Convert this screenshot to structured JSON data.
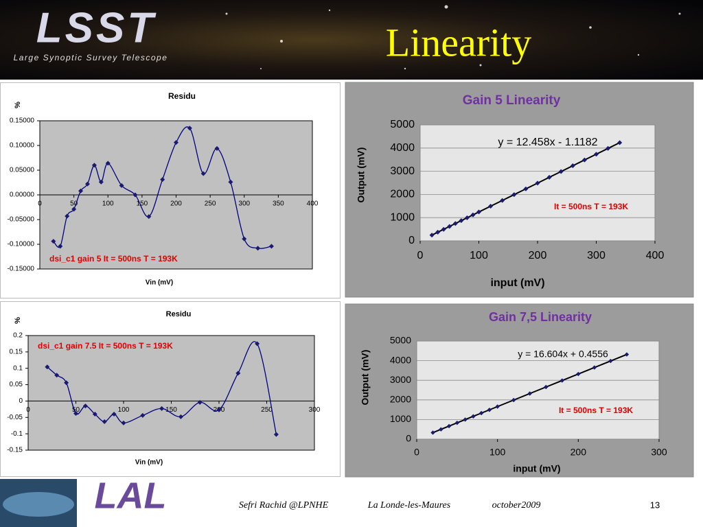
{
  "header": {
    "title": "Linearity",
    "logo": "LSST",
    "logo_caption": "Large Synoptic Survey Telescope"
  },
  "footer": {
    "author": "Sefri Rachid @LPNHE",
    "place": "La Londe-les-Maures",
    "date": "october2009",
    "page": "13",
    "logo": "LAL"
  },
  "chart_data": [
    {
      "type": "line",
      "title": "Residu",
      "ylabel": "%",
      "xlabel": "Vin (mV)",
      "annotation": "dsi_c1 gain 5  It = 500ns   T = 193K",
      "x": [
        20,
        30,
        40,
        50,
        60,
        70,
        80,
        90,
        100,
        120,
        140,
        160,
        180,
        200,
        220,
        240,
        260,
        280,
        300,
        320,
        340
      ],
      "values": [
        -0.094,
        -0.104,
        -0.043,
        -0.029,
        0.008,
        0.022,
        0.06,
        0.026,
        0.064,
        0.019,
        0.0,
        -0.044,
        0.031,
        0.106,
        0.135,
        0.043,
        0.094,
        0.026,
        -0.089,
        -0.108,
        -0.104
      ],
      "color": "#000080",
      "smooth": true,
      "grid": false,
      "xlim": [
        0,
        400
      ],
      "xticks": [
        0,
        50,
        100,
        150,
        200,
        250,
        300,
        350,
        400
      ],
      "ylim": [
        -0.15,
        0.15
      ],
      "yticks": [
        {
          "value": 0.15,
          "label": "0.15000"
        },
        {
          "value": 0.1,
          "label": "0.10000"
        },
        {
          "value": 0.05,
          "label": "0.05000"
        },
        {
          "value": 0,
          "label": "0.00000"
        },
        {
          "value": -0.05,
          "label": "-0.05000"
        },
        {
          "value": -0.1,
          "label": "-0.10000"
        },
        {
          "value": -0.15,
          "label": "-0.15000"
        }
      ]
    },
    {
      "type": "line",
      "title": "Gain 5 Linearity",
      "ylabel": "Output (mV)",
      "xlabel": "input (mV)",
      "equation": "y = 12.458x - 1.1182",
      "annotation": "It = 500ns   T = 193K",
      "x": [
        20,
        30,
        40,
        50,
        60,
        70,
        80,
        90,
        100,
        120,
        140,
        160,
        180,
        200,
        220,
        240,
        260,
        280,
        300,
        320,
        340
      ],
      "values": [
        248,
        373,
        497,
        622,
        746,
        871,
        996,
        1120,
        1245,
        1494,
        1743,
        1992,
        2241,
        2490,
        2740,
        2989,
        3238,
        3487,
        3736,
        3985,
        4234
      ],
      "color": "#000000",
      "smooth": false,
      "grid": true,
      "xlim": [
        0,
        400
      ],
      "xticks": [
        0,
        100,
        200,
        300,
        400
      ],
      "ylim": [
        0,
        5000
      ],
      "yticks": [
        0,
        1000,
        2000,
        3000,
        4000,
        5000
      ]
    },
    {
      "type": "line",
      "title": "Residu",
      "ylabel": "%",
      "xlabel": "Vin (mV)",
      "annotation": "dsi_c1 gain 7.5   It = 500ns   T = 193K",
      "x": [
        20,
        30,
        40,
        50,
        60,
        70,
        80,
        90,
        100,
        120,
        140,
        160,
        180,
        200,
        220,
        240,
        260
      ],
      "values": [
        0.104,
        0.079,
        0.056,
        -0.038,
        -0.015,
        -0.04,
        -0.063,
        -0.04,
        -0.067,
        -0.044,
        -0.023,
        -0.048,
        -0.004,
        -0.027,
        0.085,
        0.175,
        -0.102
      ],
      "color": "#000080",
      "smooth": true,
      "grid": false,
      "xlim": [
        0,
        300
      ],
      "xticks": [
        0,
        50,
        100,
        150,
        200,
        250,
        300
      ],
      "ylim": [
        -0.15,
        0.2
      ],
      "yticks": [
        0.2,
        0.15,
        0.1,
        0.05,
        0,
        -0.05,
        -0.1,
        -0.15
      ]
    },
    {
      "type": "line",
      "title": "Gain 7,5 Linearity",
      "ylabel": "Output (mV)",
      "xlabel": "input (mV)",
      "equation": "y = 16.604x + 0.4556",
      "annotation": "It = 500ns   T = 193K",
      "x": [
        20,
        30,
        40,
        50,
        60,
        70,
        80,
        90,
        100,
        120,
        140,
        160,
        180,
        200,
        220,
        240,
        260
      ],
      "values": [
        333,
        499,
        665,
        831,
        997,
        1163,
        1329,
        1495,
        1661,
        1993,
        2325,
        2657,
        2989,
        3321,
        3653,
        3985,
        4317
      ],
      "color": "#000000",
      "smooth": false,
      "grid": true,
      "xlim": [
        0,
        300
      ],
      "xticks": [
        0,
        100,
        200,
        300
      ],
      "ylim": [
        0,
        5000
      ],
      "yticks": [
        0,
        1000,
        2000,
        3000,
        4000,
        5000
      ]
    }
  ]
}
